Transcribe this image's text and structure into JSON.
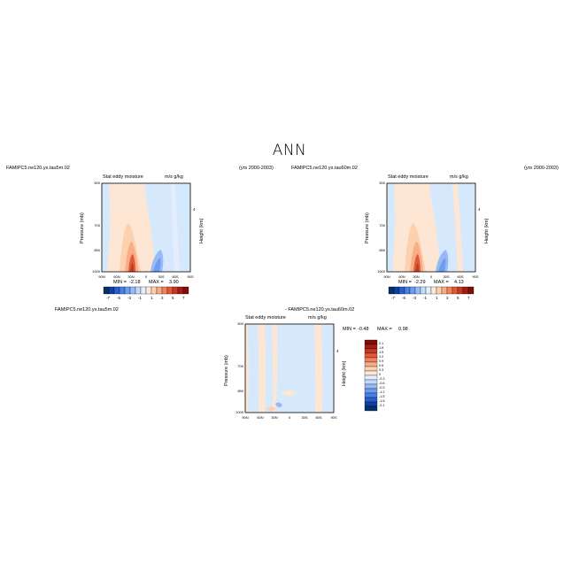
{
  "title": "ANN",
  "colors": {
    "neg_scale": [
      "#08306b",
      "#0f3fa0",
      "#2b5fd1",
      "#4a7fe3",
      "#6e9cef",
      "#97baf6",
      "#c3d9fb",
      "#e3eefd"
    ],
    "pos_scale": [
      "#fde9d8",
      "#fbd1b0",
      "#f8ae85",
      "#f0835c",
      "#e0593b",
      "#c53822",
      "#a51e12",
      "#7f0f08"
    ],
    "ltblue": "#d6e8fb",
    "ltorange": "#fde7d4"
  },
  "chart_data": [
    {
      "type": "contour",
      "case_name": "FAMIPC5.ne120.ys.tau5m.02",
      "years": "(yrs 2000-2003)",
      "subtitle_left": "Stat eddy moisture",
      "subtitle_right": "m/s g/kg",
      "ylabel": "Pressure (mb)",
      "right_label": "Height (km)",
      "right_tick": "4",
      "yticks": [
        "500",
        "700",
        "850",
        "1000"
      ],
      "xticks": [
        "90N",
        "60N",
        "30N",
        "0",
        "30S",
        "60S",
        "90S"
      ],
      "min_label": "MIN =",
      "min_value": "-2.18",
      "max_label": "MAX =",
      "max_value": "3.90",
      "colorbar_labels": [
        "-7",
        "-5",
        "-3",
        "-1",
        "1",
        "3",
        "5",
        "7"
      ],
      "ylim": [
        1000,
        500
      ],
      "xlim": [
        90,
        -90
      ]
    },
    {
      "type": "contour",
      "case_name": "FAMIPC5.ne120.ys.tau60m.02",
      "years": "(yrs 2000-2003)",
      "subtitle_left": "Stat eddy moisture",
      "subtitle_right": "m/s g/kg",
      "ylabel": "Pressure (mb)",
      "right_label": "Height (km)",
      "right_tick": "4",
      "yticks": [
        "500",
        "700",
        "850",
        "1000"
      ],
      "xticks": [
        "90N",
        "60N",
        "30N",
        "0",
        "30S",
        "60S",
        "90S"
      ],
      "min_label": "MIN =",
      "min_value": "-2.29",
      "max_label": "MAX =",
      "max_value": "4.13",
      "colorbar_labels": [
        "-7",
        "-5",
        "-3",
        "-1",
        "1",
        "3",
        "5",
        "7"
      ],
      "ylim": [
        1000,
        500
      ],
      "xlim": [
        90,
        -90
      ]
    },
    {
      "type": "contour",
      "case_name": "FAMIPC5.ne120.ys.tau5m.02",
      "diff_title": "- FAMIPC5.ne120.ys.tau60m.02",
      "subtitle_left": "Stat eddy moisture",
      "subtitle_right": "m/s g/kg",
      "ylabel": "Pressure (mb)",
      "right_label": "Height (km)",
      "right_tick": "4",
      "yticks": [
        "500",
        "700",
        "850",
        "1000"
      ],
      "xticks": [
        "90N",
        "60N",
        "30N",
        "0",
        "30S",
        "60S",
        "90S"
      ],
      "min_label": "MIN =",
      "min_value": "-0.48",
      "max_label": "MAX =",
      "max_value": "0.98",
      "colorbar_labels": [
        "2.1",
        "1.8",
        "1.5",
        "1.2",
        "0.9",
        "0.6",
        "0.3",
        "0",
        "-0.3",
        "-0.6",
        "-0.9",
        "-1.2",
        "-1.5",
        "-1.8",
        "-2.1"
      ],
      "ylim": [
        1000,
        500
      ],
      "xlim": [
        90,
        -90
      ]
    }
  ]
}
